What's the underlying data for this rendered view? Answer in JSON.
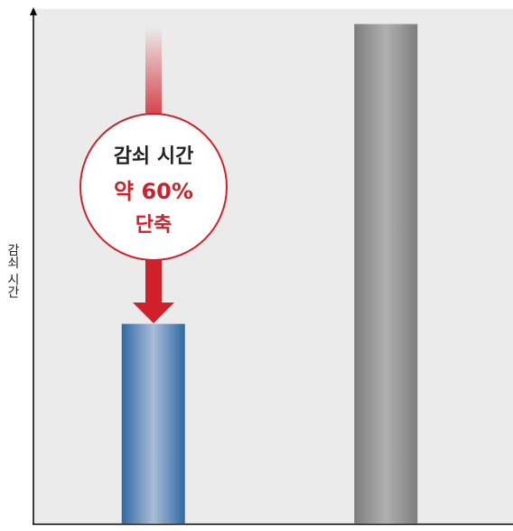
{
  "chart_data": {
    "type": "bar",
    "y_label": "감쇠 시간",
    "categories": [
      null,
      null
    ],
    "values": [
      40,
      100
    ],
    "colors": [
      "#2f6aa3",
      "#7d7d7d"
    ],
    "ylim": [
      0,
      103
    ],
    "annotation": [
      "감쇠 시간",
      "약 60%",
      "단축"
    ],
    "annotation_color": "#d0202a"
  }
}
